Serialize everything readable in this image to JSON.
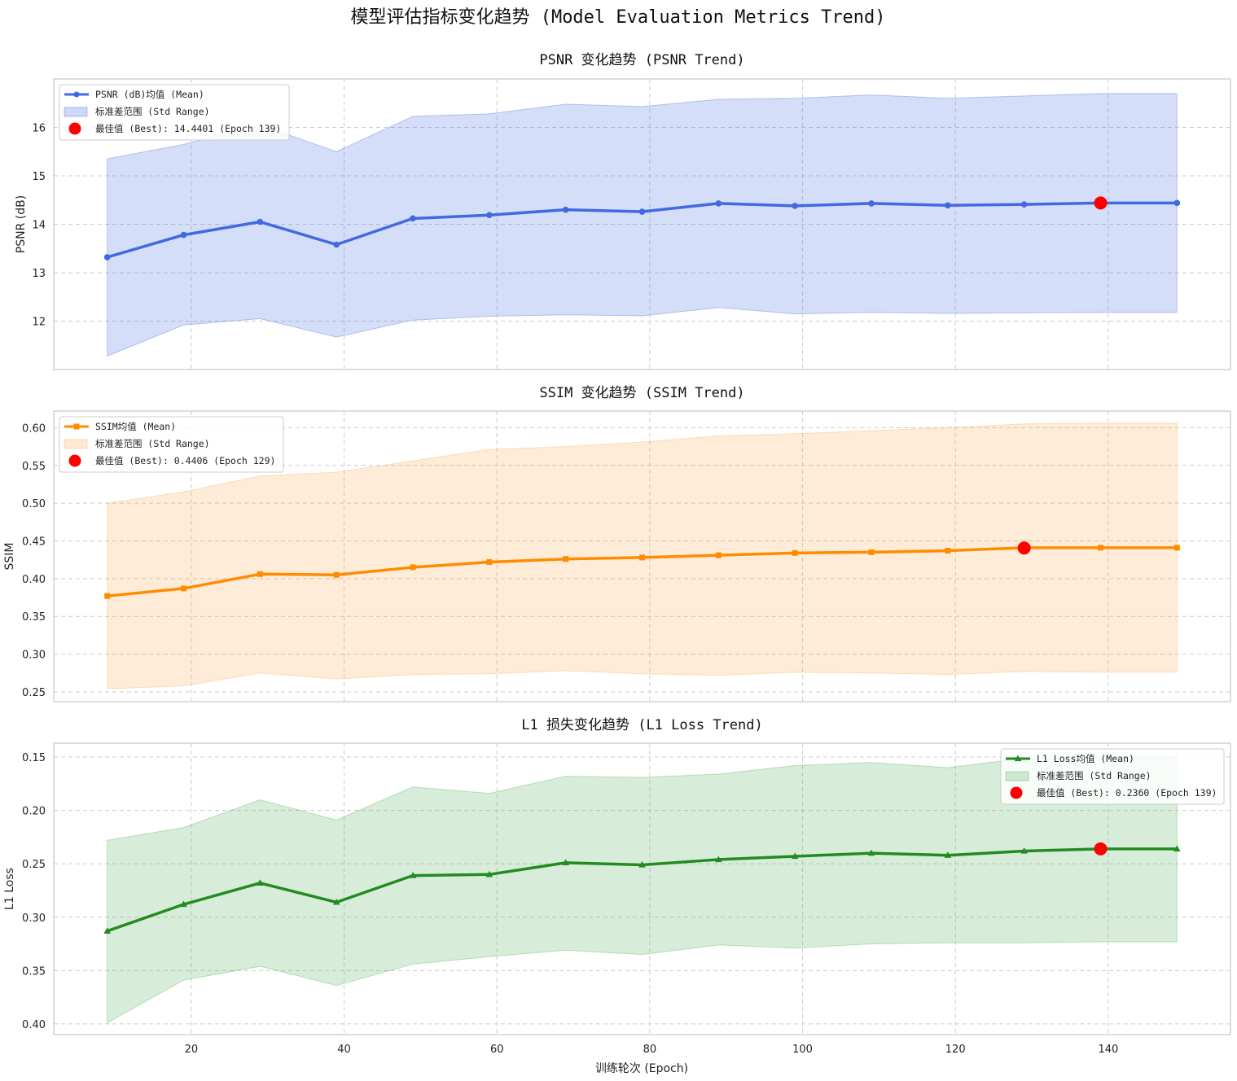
{
  "suptitle": "模型评估指标变化趋势 (Model Evaluation Metrics Trend)",
  "xlabel": "训练轮次 (Epoch)",
  "colors": {
    "grid": "#cccccc",
    "frame": "#bbbbbb",
    "best": "#ff0000"
  },
  "chart_data": [
    {
      "type": "line",
      "title": "PSNR 变化趋势 (PSNR Trend)",
      "xlabel": "训练轮次 (Epoch)",
      "ylabel": "PSNR (dB)",
      "ylim": [
        11.0,
        17.0
      ],
      "xlim": [
        2,
        156
      ],
      "yticks": [
        12,
        13,
        14,
        15,
        16
      ],
      "xticks": [
        20,
        40,
        60,
        80,
        100,
        120,
        140
      ],
      "show_xticks": false,
      "inverted": false,
      "grid": true,
      "legend_loc": "upper left",
      "color": "#4169e1",
      "fill_color": "#4169e1",
      "marker": "circle",
      "x": [
        9,
        19,
        29,
        39,
        49,
        59,
        69,
        79,
        89,
        99,
        109,
        119,
        129,
        139,
        149
      ],
      "mean": [
        13.32,
        13.78,
        14.05,
        13.58,
        14.12,
        14.19,
        14.3,
        14.26,
        14.43,
        14.38,
        14.43,
        14.39,
        14.41,
        14.44,
        14.44
      ],
      "std_lower": [
        11.28,
        11.92,
        12.05,
        11.67,
        12.02,
        12.1,
        12.13,
        12.11,
        12.28,
        12.15,
        12.18,
        12.16,
        12.17,
        12.18,
        12.18
      ],
      "std_upper": [
        15.35,
        15.65,
        16.05,
        15.5,
        16.23,
        16.28,
        16.48,
        16.43,
        16.58,
        16.6,
        16.67,
        16.6,
        16.65,
        16.7,
        16.7
      ],
      "best": {
        "x": 139,
        "y": 14.4401
      },
      "legend": [
        "PSNR (dB)均值 (Mean)",
        "标准差范围 (Std Range)",
        "最佳值 (Best): 14.4401 (Epoch 139)"
      ]
    },
    {
      "type": "line",
      "title": "SSIM 变化趋势 (SSIM Trend)",
      "xlabel": "训练轮次 (Epoch)",
      "ylabel": "SSIM",
      "ylim": [
        0.237,
        0.622
      ],
      "xlim": [
        2,
        156
      ],
      "yticks": [
        0.25,
        0.3,
        0.35,
        0.4,
        0.45,
        0.5,
        0.55,
        0.6
      ],
      "xticks": [
        20,
        40,
        60,
        80,
        100,
        120,
        140
      ],
      "show_xticks": false,
      "inverted": false,
      "grid": true,
      "legend_loc": "upper left",
      "color": "#ff8c00",
      "fill_color": "#ffa94d",
      "marker": "square",
      "x": [
        9,
        19,
        29,
        39,
        49,
        59,
        69,
        79,
        89,
        99,
        109,
        119,
        129,
        139,
        149
      ],
      "mean": [
        0.377,
        0.387,
        0.406,
        0.405,
        0.415,
        0.422,
        0.426,
        0.428,
        0.431,
        0.434,
        0.435,
        0.437,
        0.441,
        0.441,
        0.441
      ],
      "std_lower": [
        0.254,
        0.258,
        0.275,
        0.267,
        0.273,
        0.274,
        0.278,
        0.274,
        0.272,
        0.276,
        0.275,
        0.273,
        0.277,
        0.276,
        0.276
      ],
      "std_upper": [
        0.5,
        0.515,
        0.536,
        0.541,
        0.556,
        0.571,
        0.575,
        0.581,
        0.589,
        0.592,
        0.596,
        0.6,
        0.605,
        0.606,
        0.606
      ],
      "best": {
        "x": 129,
        "y": 0.4406
      },
      "legend": [
        "SSIM均值 (Mean)",
        "标准差范围 (Std Range)",
        "最佳值 (Best): 0.4406 (Epoch 129)"
      ]
    },
    {
      "type": "line",
      "title": "L1 损失变化趋势 (L1 Loss Trend)",
      "xlabel": "训练轮次 (Epoch)",
      "ylabel": "L1 Loss",
      "ylim": [
        0.41,
        0.137
      ],
      "xlim": [
        2,
        156
      ],
      "yticks": [
        0.15,
        0.2,
        0.25,
        0.3,
        0.35,
        0.4
      ],
      "xticks": [
        20,
        40,
        60,
        80,
        100,
        120,
        140
      ],
      "show_xticks": true,
      "inverted": true,
      "grid": true,
      "legend_loc": "upper right",
      "color": "#228b22",
      "fill_color": "#4caf50",
      "marker": "triangle",
      "x": [
        9,
        19,
        29,
        39,
        49,
        59,
        69,
        79,
        89,
        99,
        109,
        119,
        129,
        139,
        149
      ],
      "mean": [
        0.313,
        0.288,
        0.268,
        0.286,
        0.261,
        0.26,
        0.249,
        0.251,
        0.246,
        0.243,
        0.24,
        0.242,
        0.238,
        0.236,
        0.236
      ],
      "std_lower": [
        0.399,
        0.359,
        0.346,
        0.364,
        0.344,
        0.337,
        0.331,
        0.335,
        0.326,
        0.329,
        0.325,
        0.324,
        0.324,
        0.323,
        0.323
      ],
      "std_upper": [
        0.228,
        0.216,
        0.19,
        0.209,
        0.178,
        0.184,
        0.168,
        0.169,
        0.166,
        0.158,
        0.155,
        0.16,
        0.151,
        0.15,
        0.15
      ],
      "best": {
        "x": 139,
        "y": 0.236
      },
      "legend": [
        "L1 Loss均值 (Mean)",
        "标准差范围 (Std Range)",
        "最佳值 (Best): 0.2360 (Epoch 139)"
      ]
    }
  ]
}
